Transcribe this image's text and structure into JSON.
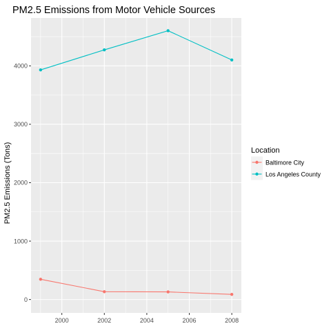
{
  "chart_data": {
    "type": "line",
    "title": "PM2.5 Emissions from Motor Vehicle Sources",
    "xlabel": "",
    "ylabel": "PM2.5 Emissions (Tons)",
    "x": [
      1999,
      2002,
      2005,
      2008
    ],
    "x_ticks": [
      2000,
      2002,
      2004,
      2006,
      2008
    ],
    "y_ticks": [
      0,
      1000,
      2000,
      3000,
      4000
    ],
    "xlim": [
      1998.55,
      2008.45
    ],
    "ylim": [
      -229,
      4820
    ],
    "grid": true,
    "legend_title": "Location",
    "legend_position": "right",
    "series": [
      {
        "name": "Baltimore City",
        "color": "#F8766D",
        "values": [
          346.8,
          134.3,
          130.4,
          88.3
        ]
      },
      {
        "name": "Los Angeles County",
        "color": "#00BFC4",
        "values": [
          3931.1,
          4274.0,
          4601.4,
          4101.3
        ]
      }
    ]
  }
}
